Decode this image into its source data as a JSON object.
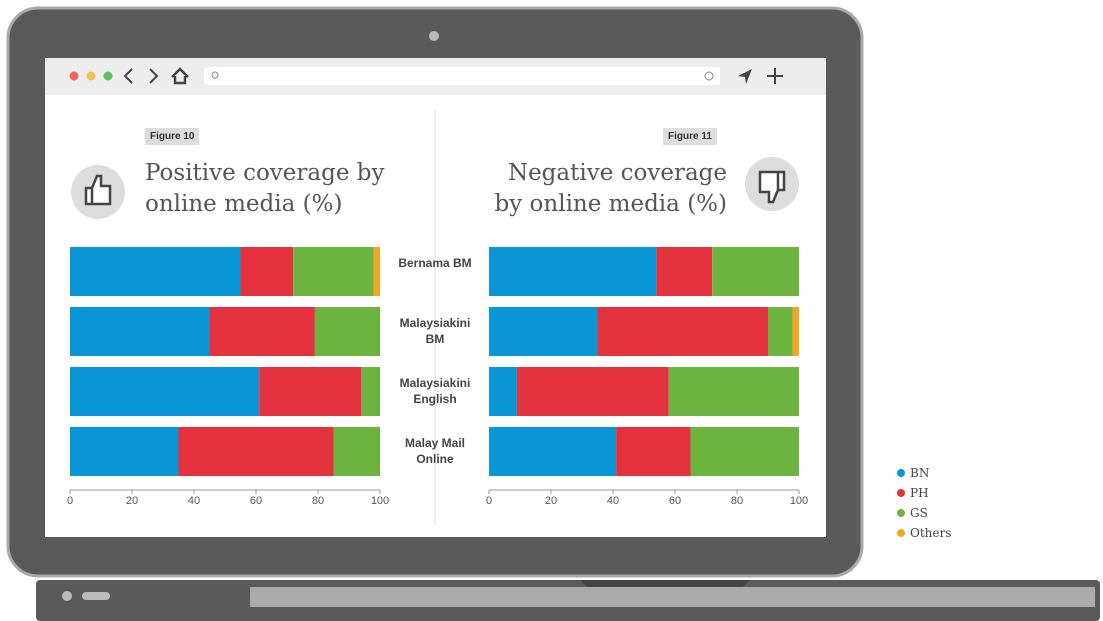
{
  "chart_data": {
    "type": "bar",
    "orientation": "horizontal",
    "stacked": true,
    "categories": [
      "Bernama BM",
      "Malaysiakini BM",
      "Malaysiakini English",
      "Malay Mail Online"
    ],
    "xlim": [
      0,
      100
    ],
    "xticks": [
      0,
      20,
      40,
      60,
      80,
      100
    ],
    "series": [
      {
        "name": "BN",
        "color": "#0a96d6"
      },
      {
        "name": "PH",
        "color": "#e5323f"
      },
      {
        "name": "GS",
        "color": "#6cb33f"
      },
      {
        "name": "Others",
        "color": "#f5a623"
      }
    ],
    "panels": [
      {
        "figure": "Figure 10",
        "title": "Positive coverage by online media (%)",
        "series_values": [
          [
            55,
            45,
            61,
            35
          ],
          [
            17,
            34,
            33,
            50
          ],
          [
            26,
            21,
            6,
            15
          ],
          [
            2,
            0,
            0,
            0
          ]
        ]
      },
      {
        "figure": "Figure 11",
        "title": "Negative coverage by online media (%)",
        "series_values": [
          [
            54,
            35,
            9,
            41
          ],
          [
            18,
            55,
            49,
            24
          ],
          [
            28,
            8,
            42,
            35
          ],
          [
            0,
            2,
            0,
            0
          ]
        ]
      }
    ]
  }
}
